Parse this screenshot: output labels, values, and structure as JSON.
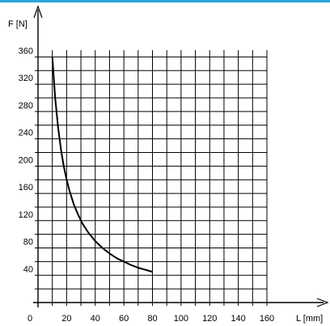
{
  "colors": {
    "accent": "#29a3dc",
    "grid": "#000000",
    "curve": "#000000"
  },
  "chart_data": {
    "type": "line",
    "title": "",
    "xlabel": "L [mm]",
    "ylabel": "F [N]",
    "xlim": [
      0,
      160
    ],
    "ylim": [
      0,
      360
    ],
    "xticks": [
      0,
      20,
      40,
      60,
      80,
      100,
      120,
      140,
      160
    ],
    "yticks": [
      40,
      80,
      120,
      160,
      200,
      240,
      280,
      320,
      360
    ],
    "grid": true,
    "series": [
      {
        "x": [
          10,
          12,
          14,
          16,
          18,
          20,
          22,
          25,
          28,
          31,
          35,
          40,
          45,
          50,
          55,
          60,
          65,
          70,
          75,
          80
        ],
        "y": [
          360,
          300,
          257,
          225,
          200,
          180,
          164,
          144,
          129,
          116,
          103,
          90,
          80,
          72,
          65,
          60,
          55,
          51,
          48,
          45
        ]
      }
    ]
  }
}
